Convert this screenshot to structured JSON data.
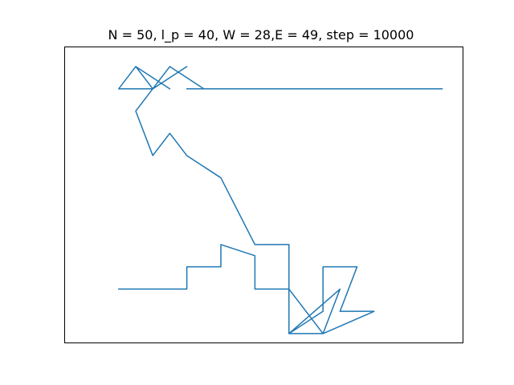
{
  "chart_data": {
    "type": "line",
    "title": "N = 50, l_p = 40, W = 28,E = 49, step = 10000",
    "xlabel": "",
    "ylabel": "",
    "grid": false,
    "axis_ticks": false,
    "xlim": [
      -1.2,
      22.2
    ],
    "ylim": [
      -11.4,
      1.9
    ],
    "series": [
      {
        "color": "#1f77b4",
        "x": [
          2,
          4,
          6,
          6,
          8,
          8,
          10,
          10,
          12,
          12,
          14,
          14,
          16,
          15,
          17,
          14,
          15,
          12,
          14,
          12,
          12,
          10,
          8,
          6,
          5,
          4,
          3,
          4,
          2,
          3,
          5,
          3,
          4,
          6,
          4,
          5,
          7,
          6,
          8,
          9,
          11,
          10,
          12,
          13,
          15,
          16,
          18,
          19,
          21,
          21
        ],
        "y": [
          -9,
          -9,
          -9,
          -8,
          -8,
          -7,
          -7.5,
          -9,
          -9,
          -11,
          -10,
          -8,
          -8,
          -10,
          -10,
          -11,
          -9,
          -11,
          -11,
          -9,
          -7,
          -7,
          -4,
          -3,
          -2,
          -3,
          -1,
          0,
          0,
          1,
          0,
          1,
          0,
          1,
          0,
          1,
          0,
          0,
          0,
          0,
          0,
          0,
          0,
          0,
          0,
          0,
          0,
          0,
          0,
          0
        ]
      }
    ]
  }
}
